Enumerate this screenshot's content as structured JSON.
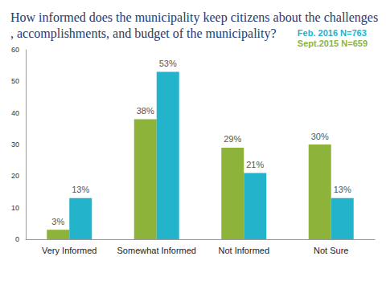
{
  "chart_data": {
    "type": "bar",
    "title": "How informed does the municipality keep citizens about the challenges, accomplishments, and budget of the municipality?",
    "categories": [
      "Very Informed",
      "Somewhat Informed",
      "Not Informed",
      "Not Sure"
    ],
    "series": [
      {
        "name": "Sept.2015 N=659",
        "color": "#8db33b",
        "values": [
          3,
          38,
          29,
          30
        ],
        "value_labels": [
          "3%",
          "38%",
          "29%",
          "30%"
        ]
      },
      {
        "name": "Feb. 2016 N=763",
        "color": "#23b4cc",
        "values": [
          13,
          53,
          21,
          13
        ],
        "value_labels": [
          "13%",
          "53%",
          "21%",
          "13%"
        ]
      }
    ],
    "ylim": [
      0,
      60
    ],
    "yticks": [
      0,
      10,
      20,
      30,
      40,
      50,
      60
    ],
    "grid": false,
    "legend": "top-right",
    "data_labels": true
  }
}
